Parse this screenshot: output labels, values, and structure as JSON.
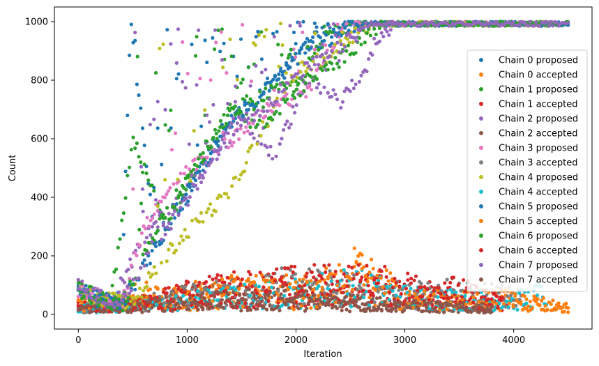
{
  "chart_data": {
    "type": "scatter",
    "xlabel": "Iteration",
    "ylabel": "Count",
    "xlim": [
      -220,
      4720
    ],
    "ylim": [
      -50,
      1050
    ],
    "xticks": [
      0,
      1000,
      2000,
      3000,
      4000
    ],
    "yticks": [
      0,
      200,
      400,
      600,
      800,
      1000
    ],
    "grid": false,
    "legend_placement": "right",
    "series": [
      {
        "name": "Chain 0 proposed",
        "color": "#1f77b4",
        "kind": "proposed",
        "ramp_start": 480,
        "ramp_end": 2500,
        "max_iter": 4500,
        "points": [
          [
            0,
            95
          ],
          [
            200,
            45
          ],
          [
            400,
            60
          ],
          [
            480,
            1000
          ],
          [
            700,
            250
          ],
          [
            1000,
            400
          ],
          [
            1300,
            620
          ],
          [
            1600,
            720
          ],
          [
            1900,
            850
          ],
          [
            2200,
            950
          ],
          [
            2500,
            990
          ],
          [
            3000,
            1000
          ],
          [
            3500,
            1000
          ],
          [
            4000,
            1000
          ],
          [
            4500,
            1000
          ]
        ]
      },
      {
        "name": "Chain 0 accepted",
        "color": "#ff7f0e",
        "kind": "accepted",
        "max_iter": 4500,
        "points": [
          [
            0,
            45
          ],
          [
            300,
            30
          ],
          [
            500,
            95
          ],
          [
            1000,
            60
          ],
          [
            1500,
            110
          ],
          [
            2000,
            80
          ],
          [
            2600,
            190
          ],
          [
            3000,
            60
          ],
          [
            3500,
            70
          ],
          [
            4000,
            60
          ],
          [
            4500,
            20
          ]
        ]
      },
      {
        "name": "Chain 1 proposed",
        "color": "#2ca02c",
        "kind": "proposed",
        "ramp_start": 450,
        "ramp_end": 2500,
        "max_iter": 4500,
        "points": [
          [
            0,
            90
          ],
          [
            300,
            40
          ],
          [
            500,
            600
          ],
          [
            800,
            300
          ],
          [
            1000,
            450
          ],
          [
            1300,
            650
          ],
          [
            1600,
            740
          ],
          [
            2000,
            780
          ],
          [
            2300,
            960
          ],
          [
            2600,
            1000
          ],
          [
            3000,
            1000
          ],
          [
            4000,
            1000
          ],
          [
            4500,
            1000
          ]
        ]
      },
      {
        "name": "Chain 1 accepted",
        "color": "#d62728",
        "kind": "accepted",
        "max_iter": 4000,
        "points": [
          [
            0,
            40
          ],
          [
            400,
            35
          ],
          [
            800,
            60
          ],
          [
            1200,
            100
          ],
          [
            1600,
            110
          ],
          [
            2000,
            120
          ],
          [
            2500,
            110
          ],
          [
            3000,
            100
          ],
          [
            3500,
            80
          ],
          [
            4000,
            40
          ]
        ]
      },
      {
        "name": "Chain 2 proposed",
        "color": "#9467bd",
        "kind": "proposed",
        "ramp_start": 500,
        "ramp_end": 2900,
        "max_iter": 4400,
        "points": [
          [
            0,
            100
          ],
          [
            300,
            30
          ],
          [
            600,
            260
          ],
          [
            900,
            380
          ],
          [
            1200,
            520
          ],
          [
            1500,
            660
          ],
          [
            1800,
            540
          ],
          [
            2100,
            800
          ],
          [
            2400,
            720
          ],
          [
            2700,
            880
          ],
          [
            2900,
            1000
          ],
          [
            3500,
            1000
          ],
          [
            4400,
            1000
          ]
        ]
      },
      {
        "name": "Chain 2 accepted",
        "color": "#8c564b",
        "kind": "accepted",
        "max_iter": 3800,
        "points": [
          [
            0,
            35
          ],
          [
            400,
            25
          ],
          [
            800,
            70
          ],
          [
            1200,
            80
          ],
          [
            1600,
            70
          ],
          [
            2000,
            80
          ],
          [
            2400,
            60
          ],
          [
            2800,
            50
          ],
          [
            3200,
            40
          ],
          [
            3800,
            30
          ]
        ]
      },
      {
        "name": "Chain 3 proposed",
        "color": "#e377c2",
        "kind": "proposed",
        "ramp_start": 480,
        "ramp_end": 2500,
        "max_iter": 4200,
        "points": [
          [
            0,
            80
          ],
          [
            400,
            40
          ],
          [
            600,
            300
          ],
          [
            900,
            450
          ],
          [
            1200,
            550
          ],
          [
            1500,
            620
          ],
          [
            1800,
            720
          ],
          [
            2100,
            760
          ],
          [
            2400,
            960
          ],
          [
            2700,
            1000
          ],
          [
            3500,
            1000
          ],
          [
            4200,
            1000
          ]
        ]
      },
      {
        "name": "Chain 3 accepted",
        "color": "#7f7f7f",
        "kind": "accepted",
        "max_iter": 4100,
        "points": [
          [
            0,
            30
          ],
          [
            500,
            40
          ],
          [
            1000,
            80
          ],
          [
            1500,
            100
          ],
          [
            2000,
            130
          ],
          [
            2500,
            110
          ],
          [
            3000,
            90
          ],
          [
            3500,
            100
          ],
          [
            4100,
            70
          ]
        ]
      },
      {
        "name": "Chain 4 proposed",
        "color": "#bcbd22",
        "kind": "proposed",
        "ramp_start": 700,
        "ramp_end": 2700,
        "max_iter": 4300,
        "points": [
          [
            0,
            70
          ],
          [
            500,
            40
          ],
          [
            800,
            200
          ],
          [
            1100,
            320
          ],
          [
            1400,
            420
          ],
          [
            1700,
            640
          ],
          [
            2000,
            830
          ],
          [
            2300,
            880
          ],
          [
            2600,
            980
          ],
          [
            3000,
            1000
          ],
          [
            4300,
            1000
          ]
        ]
      },
      {
        "name": "Chain 4 accepted",
        "color": "#17becf",
        "kind": "accepted",
        "max_iter": 4300,
        "points": [
          [
            0,
            30
          ],
          [
            500,
            30
          ],
          [
            1000,
            60
          ],
          [
            1500,
            80
          ],
          [
            2000,
            100
          ],
          [
            2500,
            130
          ],
          [
            3000,
            80
          ],
          [
            3500,
            70
          ],
          [
            4000,
            60
          ],
          [
            4300,
            90
          ]
        ]
      },
      {
        "name": "Chain 5 proposed",
        "color": "#1f77b4",
        "kind": "proposed",
        "ramp_start": 500,
        "ramp_end": 2600,
        "max_iter": 4500,
        "points": [
          [
            0,
            85
          ],
          [
            400,
            35
          ],
          [
            700,
            220
          ],
          [
            1000,
            420
          ],
          [
            1400,
            660
          ],
          [
            1700,
            760
          ],
          [
            2000,
            870
          ],
          [
            2300,
            940
          ],
          [
            2600,
            1000
          ],
          [
            3500,
            1000
          ],
          [
            4500,
            1000
          ]
        ]
      },
      {
        "name": "Chain 5 accepted",
        "color": "#ff7f0e",
        "kind": "accepted",
        "max_iter": 4500,
        "points": [
          [
            0,
            40
          ],
          [
            500,
            60
          ],
          [
            1000,
            80
          ],
          [
            1500,
            120
          ],
          [
            2000,
            100
          ],
          [
            2500,
            140
          ],
          [
            2700,
            180
          ],
          [
            3000,
            70
          ],
          [
            3500,
            60
          ],
          [
            4000,
            70
          ],
          [
            4500,
            30
          ]
        ]
      },
      {
        "name": "Chain 6 proposed",
        "color": "#2ca02c",
        "kind": "proposed",
        "ramp_start": 450,
        "ramp_end": 2800,
        "max_iter": 4400,
        "points": [
          [
            0,
            75
          ],
          [
            400,
            30
          ],
          [
            700,
            280
          ],
          [
            1000,
            460
          ],
          [
            1400,
            700
          ],
          [
            1700,
            640
          ],
          [
            2000,
            760
          ],
          [
            2400,
            870
          ],
          [
            2800,
            1000
          ],
          [
            3500,
            1000
          ],
          [
            4400,
            1000
          ]
        ]
      },
      {
        "name": "Chain 6 accepted",
        "color": "#d62728",
        "kind": "accepted",
        "max_iter": 3900,
        "points": [
          [
            0,
            35
          ],
          [
            500,
            40
          ],
          [
            1000,
            90
          ],
          [
            1500,
            120
          ],
          [
            2000,
            130
          ],
          [
            2500,
            140
          ],
          [
            3000,
            120
          ],
          [
            3500,
            100
          ],
          [
            3900,
            50
          ]
        ]
      },
      {
        "name": "Chain 7 proposed",
        "color": "#9467bd",
        "kind": "proposed",
        "ramp_start": 500,
        "ramp_end": 2700,
        "max_iter": 4500,
        "points": [
          [
            0,
            95
          ],
          [
            400,
            35
          ],
          [
            700,
            250
          ],
          [
            1000,
            380
          ],
          [
            1400,
            640
          ],
          [
            1700,
            700
          ],
          [
            2000,
            820
          ],
          [
            2300,
            880
          ],
          [
            2700,
            1000
          ],
          [
            3500,
            1000
          ],
          [
            4500,
            1000
          ]
        ]
      },
      {
        "name": "Chain 7 accepted",
        "color": "#8c564b",
        "kind": "accepted",
        "max_iter": 3800,
        "points": [
          [
            0,
            30
          ],
          [
            400,
            20
          ],
          [
            800,
            50
          ],
          [
            1200,
            60
          ],
          [
            1600,
            55
          ],
          [
            2000,
            60
          ],
          [
            2400,
            50
          ],
          [
            2800,
            40
          ],
          [
            3200,
            35
          ],
          [
            3800,
            20
          ]
        ]
      }
    ]
  }
}
